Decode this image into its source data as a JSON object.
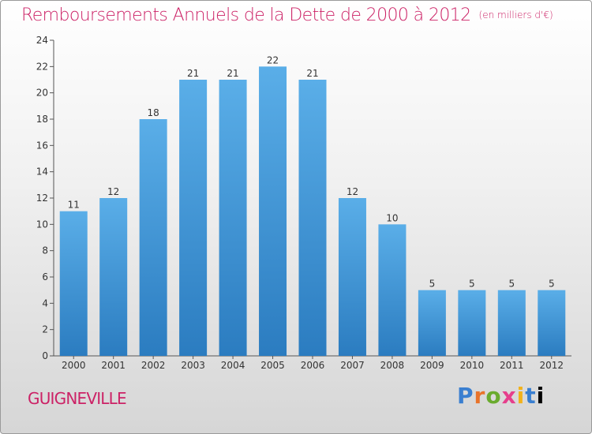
{
  "header": {
    "title": "Remboursements Annuels de la Dette de 2000 à 2012",
    "unit": "(en milliers d'€)"
  },
  "footer": {
    "city": "GUIGNEVILLE",
    "logo": [
      "P",
      "r",
      "o",
      "x",
      "i",
      "t",
      "i"
    ]
  },
  "chart_data": {
    "type": "bar",
    "title": "Remboursements Annuels de la Dette de 2000 à 2012",
    "subtitle": "(en milliers d'€)",
    "xlabel": "",
    "ylabel": "",
    "categories": [
      "2000",
      "2001",
      "2002",
      "2003",
      "2004",
      "2005",
      "2006",
      "2007",
      "2008",
      "2009",
      "2010",
      "2011",
      "2012"
    ],
    "values": [
      11,
      12,
      18,
      21,
      21,
      22,
      21,
      12,
      10,
      5,
      5,
      5,
      5
    ],
    "ylim": [
      0,
      24
    ],
    "yticks": [
      0,
      2,
      4,
      6,
      8,
      10,
      12,
      14,
      16,
      18,
      20,
      22,
      24
    ],
    "grid": false,
    "colors": {
      "bar_top": "#5aaee8",
      "bar_bottom": "#2b7cc0",
      "axis": "#555555",
      "title": "#cc2266"
    }
  }
}
